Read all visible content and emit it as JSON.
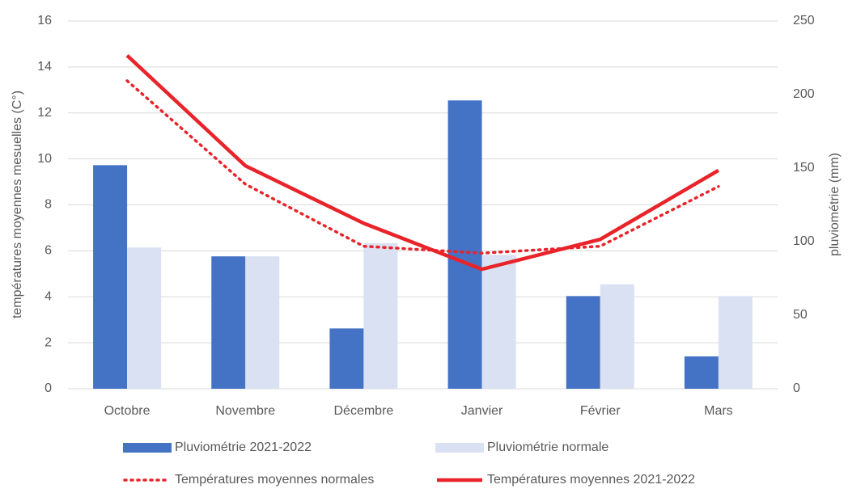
{
  "chart_data": {
    "type": "bar-line",
    "categories": [
      "Octobre",
      "Novembre",
      "Décembre",
      "Janvier",
      "Février",
      "Mars"
    ],
    "ylabel": "températures moyennes mesuelles (C°)",
    "y2label": "pluviométrie (mm)",
    "ylim": [
      0,
      16
    ],
    "yticks": [
      0,
      2,
      4,
      6,
      8,
      10,
      12,
      14,
      16
    ],
    "y2lim": [
      0,
      250
    ],
    "y2ticks": [
      0,
      50,
      100,
      150,
      200,
      250
    ],
    "grid": true,
    "series": [
      {
        "name": "Pluviométrie 2021-2022",
        "kind": "bar",
        "axis": "y2",
        "color": "#4472c4",
        "values": [
          152,
          90,
          41,
          196,
          63,
          22
        ]
      },
      {
        "name": "Pluviométrie normale",
        "kind": "bar",
        "axis": "y2",
        "color": "#d9e1f2",
        "values": [
          96,
          90,
          99,
          91,
          71,
          63
        ]
      },
      {
        "name": "Températures moyennes normales",
        "kind": "line",
        "style": "dotted",
        "color": "#e8242a",
        "values": [
          13.4,
          8.9,
          6.2,
          5.9,
          6.2,
          8.8
        ]
      },
      {
        "name": "Températures moyennes 2021-2022",
        "kind": "line",
        "style": "solid",
        "color": "#e8242a",
        "values": [
          14.5,
          9.7,
          7.2,
          5.2,
          6.5,
          9.5
        ]
      }
    ]
  }
}
